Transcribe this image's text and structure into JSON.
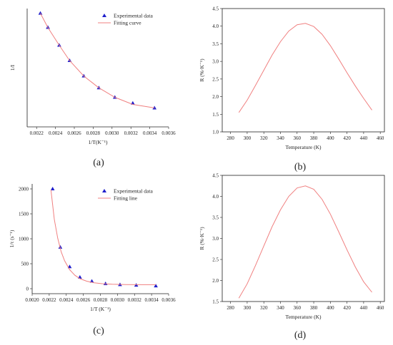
{
  "panel_labels": [
    "(a)",
    "(b)",
    "(c)",
    "(d)"
  ],
  "colors": {
    "curve": "#f08080",
    "marker": "#1f1fcc",
    "axis": "#222222"
  },
  "chart_data": [
    {
      "id": "a",
      "type": "scatter",
      "xlabel": "1/T(K⁻¹)",
      "ylabel": "1/I",
      "xlim": [
        0.0021,
        0.0036
      ],
      "xticks": [
        "0.0022",
        "0.0024",
        "0.0026",
        "0.0028",
        "0.0030",
        "0.0032",
        "0.0034",
        "0.0036"
      ],
      "ylim": [
        0,
        1
      ],
      "yticks": [],
      "legend": "top-right",
      "series": [
        {
          "name": "Experimental data",
          "kind": "points",
          "x": [
            0.00224,
            0.00232,
            0.00244,
            0.00255,
            0.0027,
            0.00286,
            0.00303,
            0.00322,
            0.00345
          ],
          "y": [
            0.96,
            0.84,
            0.69,
            0.56,
            0.43,
            0.33,
            0.25,
            0.2,
            0.16
          ]
        },
        {
          "name": "Fitting curve",
          "kind": "line",
          "x": [
            0.00224,
            0.00232,
            0.00244,
            0.00255,
            0.0027,
            0.00286,
            0.00303,
            0.00322,
            0.00345
          ],
          "y": [
            0.96,
            0.84,
            0.69,
            0.56,
            0.43,
            0.33,
            0.25,
            0.19,
            0.16
          ]
        }
      ]
    },
    {
      "id": "b",
      "type": "line",
      "xlabel": "Temperature (K)",
      "ylabel": "R (%·K⁻¹)",
      "xlim": [
        270,
        465
      ],
      "xticks": [
        "280",
        "300",
        "320",
        "340",
        "360",
        "380",
        "400",
        "420",
        "440",
        "460"
      ],
      "ylim": [
        1.0,
        4.5
      ],
      "yticks": [
        "1.0",
        "1.5",
        "2.0",
        "2.5",
        "3.0",
        "3.5",
        "4.0",
        "4.5"
      ],
      "series": [
        {
          "kind": "line",
          "x": [
            290,
            300,
            310,
            320,
            330,
            340,
            350,
            360,
            370,
            380,
            390,
            400,
            410,
            420,
            430,
            440,
            450
          ],
          "y": [
            1.55,
            1.9,
            2.32,
            2.75,
            3.18,
            3.56,
            3.86,
            4.04,
            4.08,
            3.99,
            3.77,
            3.45,
            3.07,
            2.68,
            2.3,
            1.95,
            1.62
          ]
        }
      ]
    },
    {
      "id": "c",
      "type": "scatter",
      "xlabel": "1/T (K⁻¹)",
      "ylabel": "1/τ (s⁻¹)",
      "xlim": [
        0.002,
        0.0036
      ],
      "xticks": [
        "0.0020",
        "0.0022",
        "0.0024",
        "0.0026",
        "0.0028",
        "0.0030",
        "0.0032",
        "0.0034",
        "0.0036"
      ],
      "ylim": [
        -100,
        2100
      ],
      "yticks": [
        "0",
        "500",
        "1000",
        "1500",
        "2000"
      ],
      "legend": "top-right",
      "series": [
        {
          "name": "Experimental data",
          "kind": "points",
          "x": [
            0.00224,
            0.00233,
            0.00244,
            0.00256,
            0.0027,
            0.00286,
            0.00303,
            0.00322,
            0.00345
          ],
          "y": [
            2000,
            830,
            440,
            230,
            150,
            100,
            80,
            70,
            55
          ]
        },
        {
          "name": "Fitting line",
          "kind": "line",
          "x": [
            0.00222,
            0.00226,
            0.0023,
            0.00234,
            0.00238,
            0.00244,
            0.0025,
            0.00256,
            0.00264,
            0.00272,
            0.00282,
            0.00294,
            0.0031,
            0.0033,
            0.00345
          ],
          "y": [
            1980,
            1390,
            1010,
            740,
            560,
            380,
            270,
            200,
            150,
            120,
            100,
            88,
            82,
            80,
            80
          ]
        }
      ]
    },
    {
      "id": "d",
      "type": "line",
      "xlabel": "Temperature (K)",
      "ylabel": "R (%·K⁻¹)",
      "xlim": [
        270,
        465
      ],
      "xticks": [
        "280",
        "300",
        "320",
        "340",
        "360",
        "380",
        "400",
        "420",
        "440",
        "460"
      ],
      "ylim": [
        1.5,
        4.5
      ],
      "yticks": [
        "1.5",
        "2.0",
        "2.5",
        "3.0",
        "3.5",
        "4.0",
        "4.5"
      ],
      "series": [
        {
          "kind": "line",
          "x": [
            290,
            300,
            310,
            320,
            330,
            340,
            350,
            360,
            370,
            380,
            390,
            400,
            410,
            420,
            430,
            440,
            450
          ],
          "y": [
            1.58,
            1.92,
            2.36,
            2.82,
            3.28,
            3.68,
            4.0,
            4.2,
            4.25,
            4.17,
            3.93,
            3.58,
            3.16,
            2.73,
            2.32,
            1.97,
            1.72
          ]
        }
      ]
    }
  ]
}
